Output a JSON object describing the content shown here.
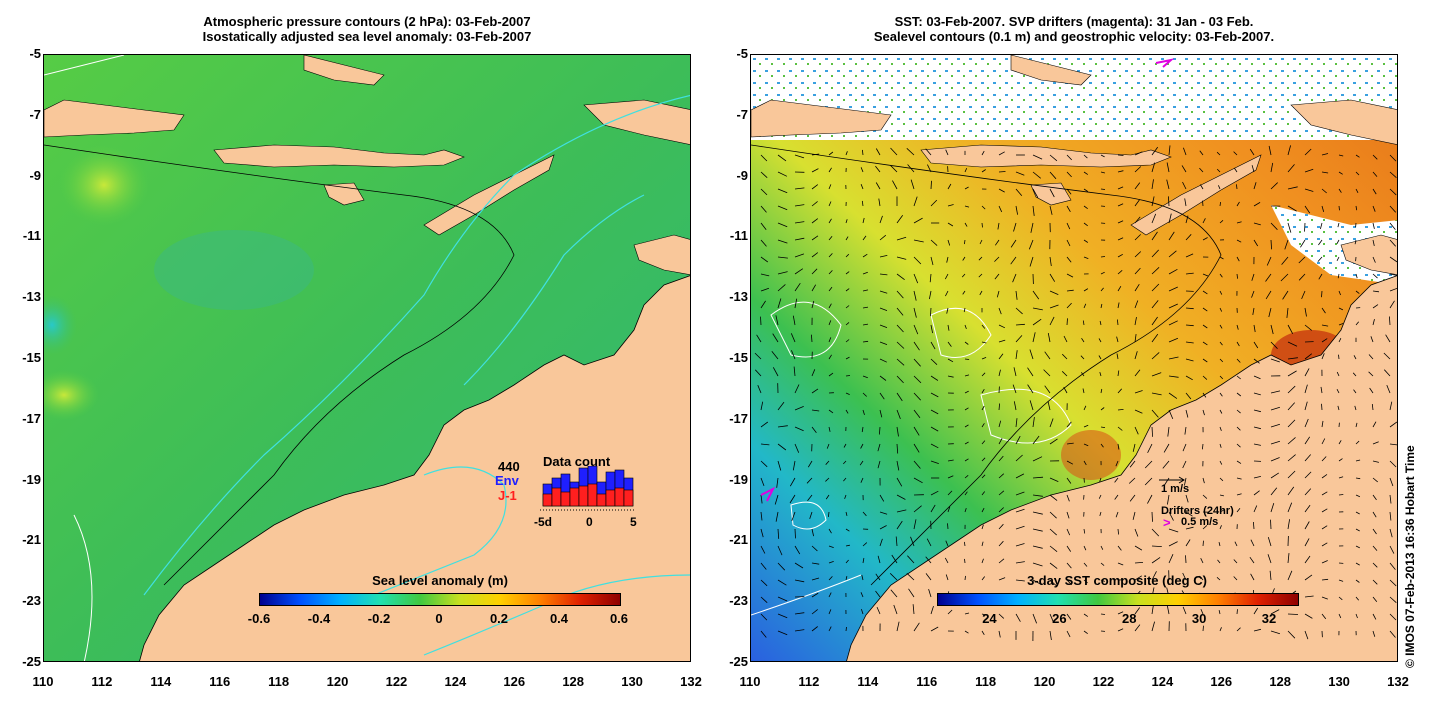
{
  "left_panel": {
    "title_line1": "Atmospheric pressure contours (2 hPa): 03-Feb-2007",
    "title_line2": "Isostatically adjusted sea level anomaly: 03-Feb-2007",
    "colorbar": {
      "title": "Sea level anomaly (m)",
      "tick_labels": [
        "-0.6",
        "-0.4",
        "-0.2",
        "0",
        "0.2",
        "0.4",
        "0.6"
      ],
      "range": [
        -0.6,
        0.6
      ]
    },
    "data_count": {
      "title": "Data count",
      "total": "440",
      "legend_env": "Env",
      "legend_j1": "J-1",
      "env_color": "#1f1fff",
      "j1_color": "#ff1f1f",
      "axis_labels": [
        "-5d",
        "0",
        "5"
      ],
      "env_values": [
        0.55,
        0.7,
        0.8,
        0.6,
        0.95,
        1.0,
        0.6,
        0.85,
        0.9,
        0.7
      ],
      "j1_values": [
        0.3,
        0.45,
        0.35,
        0.45,
        0.5,
        0.55,
        0.3,
        0.4,
        0.45,
        0.4
      ]
    }
  },
  "right_panel": {
    "title_line1": "SST: 03-Feb-2007. SVP drifters (magenta): 31 Jan - 03 Feb.",
    "title_line2": "Sealevel contours (0.1 m) and geostrophic velocity: 03-Feb-2007.",
    "colorbar": {
      "title": "3-day SST composite (deg C)",
      "tick_labels": [
        "24",
        "26",
        "28",
        "30",
        "32"
      ],
      "range": [
        22.5,
        32.8
      ]
    },
    "velocity_scale_label": "1 m/s",
    "drifters_label": "Drifters (24hr)",
    "drifters_scale_label": "0.5 m/s",
    "drifter_symbol": ">",
    "drifter_color": "#e000e0"
  },
  "axes": {
    "x_ticks": [
      "110",
      "112",
      "114",
      "116",
      "118",
      "120",
      "122",
      "124",
      "126",
      "128",
      "130",
      "132"
    ],
    "y_ticks": [
      "-5",
      "-7",
      "-9",
      "-11",
      "-13",
      "-15",
      "-17",
      "-19",
      "-21",
      "-23",
      "-25"
    ],
    "lon_range": [
      110,
      132
    ],
    "lat_range": [
      -25,
      -5
    ]
  },
  "colors": {
    "land": "#f9c79a",
    "ocean_green": "#35c14a",
    "sst_orange": "#f6a21e",
    "cloud_white": "#ffffff"
  },
  "copyright": "© IMOS 07-Feb-2013 16:36 Hobart Time"
}
